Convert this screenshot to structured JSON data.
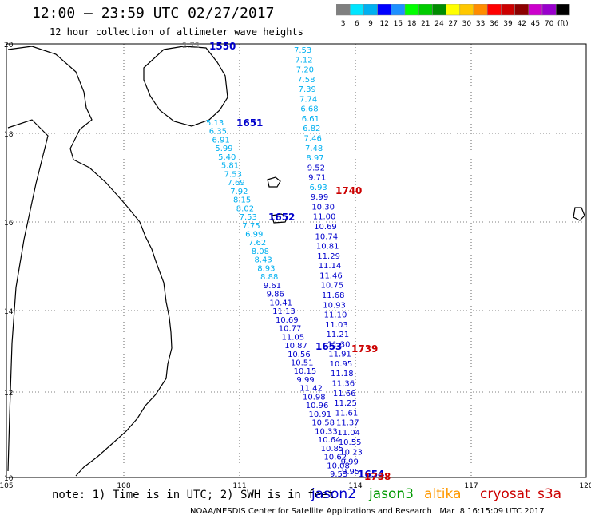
{
  "title": "12:00 – 23:59 UTC 02/27/2017",
  "subtitle": "12 hour collection of altimeter wave heights",
  "colorbar": {
    "colors": [
      "#7f7f7f",
      "#00e5ff",
      "#00b0f0",
      "#0000ff",
      "#1e90ff",
      "#00ff00",
      "#00cc00",
      "#008c00",
      "#ffff00",
      "#ffc800",
      "#ff8c00",
      "#ff0000",
      "#cc0000",
      "#8c0000",
      "#cc00cc",
      "#9900cc",
      "#000000"
    ],
    "labels": [
      "3",
      "6",
      "9",
      "12",
      "15",
      "18",
      "21",
      "24",
      "27",
      "30",
      "33",
      "36",
      "39",
      "42",
      "45",
      "70",
      "(ft)"
    ]
  },
  "axes": {
    "x_ticks": [
      "105",
      "108",
      "111",
      "114",
      "117",
      "120"
    ],
    "y_ticks": [
      "20",
      "18",
      "16",
      "14",
      "12",
      "10"
    ]
  },
  "track_times": [
    {
      "text": "1550",
      "color": "#0000cc"
    },
    {
      "text": "1651",
      "color": "#0000cc"
    },
    {
      "text": "1652",
      "color": "#0000cc"
    },
    {
      "text": "1653",
      "color": "#0000cc"
    },
    {
      "text": "1654",
      "color": "#0000cc"
    },
    {
      "text": "1740",
      "color": "#cc0000"
    },
    {
      "text": "1739",
      "color": "#cc0000"
    },
    {
      "text": "1738",
      "color": "#cc0000"
    }
  ],
  "track_a": [
    "7.53",
    "7.12",
    "7.20",
    "7.58",
    "7.39",
    "7.74",
    "6.68",
    "6.61",
    "6.82",
    "7.46",
    "7.48",
    "8.97",
    "9.52",
    "9.71",
    "6.93",
    "9.99",
    "10.30",
    "11.00",
    "10.69",
    "10.74",
    "10.81",
    "11.29",
    "11.14",
    "11.46",
    "10.75",
    "11.68",
    "10.93",
    "11.10",
    "11.03",
    "11.21",
    "11.30",
    "11.91",
    "10.95",
    "11.18",
    "11.36",
    "11.66",
    "11.25",
    "11.61",
    "11.37",
    "11.04",
    "10.55",
    "10.23",
    "9.99",
    "9.95"
  ],
  "track_b": [
    "5.13",
    "6.35",
    "6.91",
    "5.99",
    "5.40",
    "5.81",
    "7.53",
    "7.69",
    "7.92",
    "8.15",
    "8.02",
    "7.53",
    "7.75",
    "6.99",
    "7.62",
    "8.08",
    "8.43",
    "8.93",
    "8.88",
    "9.61",
    "9.86",
    "10.41",
    "11.13",
    "10.69",
    "10.77",
    "11.05",
    "10.87",
    "10.56",
    "10.51",
    "10.15",
    "9.99",
    "11.42",
    "10.98",
    "10.96",
    "10.91",
    "10.58",
    "10.33",
    "10.64",
    "10.85",
    "10.62",
    "10.08",
    "9.53"
  ],
  "small_label": "2.72",
  "note": "note: 1) Time is in UTC; 2) SWH is in feet",
  "legend": [
    {
      "name": "jason2",
      "color": "#0000cc"
    },
    {
      "name": "jason3",
      "color": "#009900"
    },
    {
      "name": "altika",
      "color": "#ff9900"
    },
    {
      "name": "cryosat",
      "color": "#cc0000"
    },
    {
      "name": "s3a",
      "color": "#cc0000"
    }
  ],
  "credit": "NOAA/NESDIS Center for Satellite Applications and Research   Mar  8 16:15:09 UTC 2017"
}
